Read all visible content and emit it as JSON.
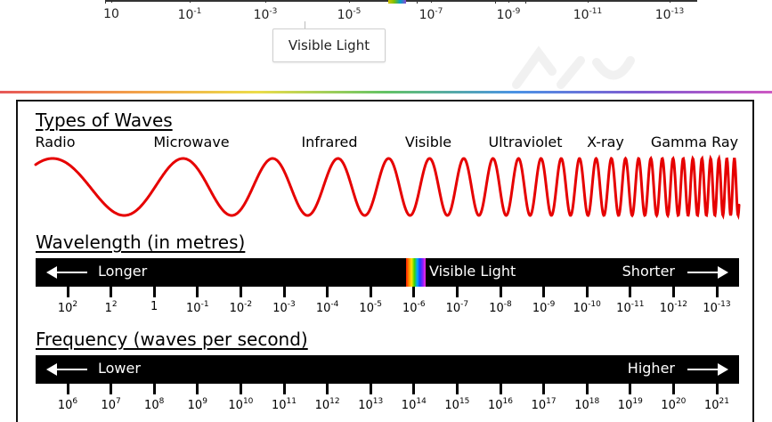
{
  "top_scale": {
    "labels": [
      {
        "base": "10",
        "exp": ""
      },
      {
        "base": "10",
        "exp": "-1"
      },
      {
        "base": "10",
        "exp": "-3"
      },
      {
        "base": "10",
        "exp": "-5"
      },
      {
        "base": "10",
        "exp": "-7"
      },
      {
        "base": "10",
        "exp": "-9"
      },
      {
        "base": "10",
        "exp": "-11"
      },
      {
        "base": "10",
        "exp": "-13"
      }
    ],
    "callout": "Visible Light"
  },
  "diagram": {
    "types_heading": "Types of Waves",
    "wave_types": [
      "Radio",
      "Microwave",
      "Infrared",
      "Visible",
      "Ultraviolet",
      "X-ray",
      "Gamma Ray"
    ],
    "wave_color": "#e60000",
    "wavelength": {
      "heading": "Wavelength (in metres)",
      "left_label": "Longer",
      "right_label": "Shorter",
      "visible_label": "Visible Light",
      "ticks": [
        {
          "base": "10",
          "exp": "2"
        },
        {
          "base": "1",
          "exp": "2"
        },
        {
          "base": "1",
          "exp": ""
        },
        {
          "base": "10",
          "exp": "-1"
        },
        {
          "base": "10",
          "exp": "-2"
        },
        {
          "base": "10",
          "exp": "-3"
        },
        {
          "base": "10",
          "exp": "-4"
        },
        {
          "base": "10",
          "exp": "-5"
        },
        {
          "base": "10",
          "exp": "-6"
        },
        {
          "base": "10",
          "exp": "-7"
        },
        {
          "base": "10",
          "exp": "-8"
        },
        {
          "base": "10",
          "exp": "-9"
        },
        {
          "base": "10",
          "exp": "-10"
        },
        {
          "base": "10",
          "exp": "-11"
        },
        {
          "base": "10",
          "exp": "-12"
        },
        {
          "base": "10",
          "exp": "-13"
        }
      ]
    },
    "frequency": {
      "heading": "Frequency (waves per second)",
      "left_label": "Lower",
      "right_label": "Higher",
      "ticks": [
        {
          "base": "10",
          "exp": "6"
        },
        {
          "base": "10",
          "exp": "7"
        },
        {
          "base": "10",
          "exp": "8"
        },
        {
          "base": "10",
          "exp": "9"
        },
        {
          "base": "10",
          "exp": "10"
        },
        {
          "base": "10",
          "exp": "11"
        },
        {
          "base": "10",
          "exp": "12"
        },
        {
          "base": "10",
          "exp": "13"
        },
        {
          "base": "10",
          "exp": "14"
        },
        {
          "base": "10",
          "exp": "15"
        },
        {
          "base": "10",
          "exp": "16"
        },
        {
          "base": "10",
          "exp": "17"
        },
        {
          "base": "10",
          "exp": "18"
        },
        {
          "base": "10",
          "exp": "19"
        },
        {
          "base": "10",
          "exp": "20"
        },
        {
          "base": "10",
          "exp": "21"
        }
      ]
    }
  }
}
